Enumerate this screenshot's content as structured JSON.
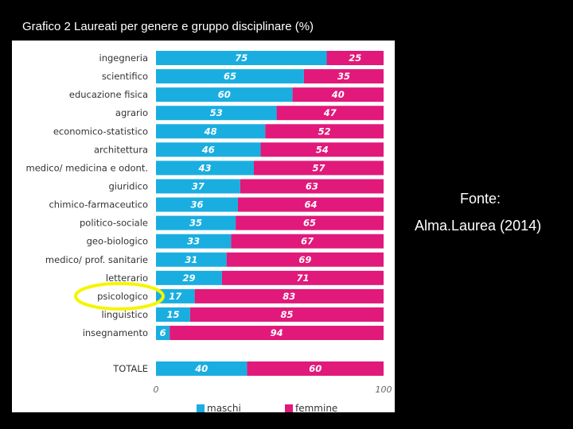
{
  "slide": {
    "title": "Grafico 2 Laureati per genere e gruppo disciplinare (%)",
    "fonte_label": "Fonte:",
    "fonte_source": "Alma.Laurea (2014)"
  },
  "colors": {
    "maschi": "#1aaee0",
    "femmine": "#e0197a",
    "highlight": "#f5f500"
  },
  "chart_data": {
    "type": "bar",
    "stacked": true,
    "orientation": "horizontal",
    "categories": [
      "ingegneria",
      "scientifico",
      "educazione fisica",
      "agrario",
      "economico-statistico",
      "architettura",
      "medico/ medicina e odont.",
      "giuridico",
      "chimico-farmaceutico",
      "politico-sociale",
      "geo-biologico",
      "medico/ prof. sanitarie",
      "letterario",
      "psicologico",
      "linguistico",
      "insegnamento",
      "TOTALE"
    ],
    "series": [
      {
        "name": "maschi",
        "values": [
          75,
          65,
          60,
          53,
          48,
          46,
          43,
          37,
          36,
          35,
          33,
          31,
          29,
          17,
          15,
          6,
          40
        ]
      },
      {
        "name": "femmine",
        "values": [
          25,
          35,
          40,
          47,
          52,
          54,
          57,
          63,
          64,
          65,
          67,
          69,
          71,
          83,
          85,
          94,
          60
        ]
      }
    ],
    "xlim": [
      0,
      100
    ],
    "x_ticks": [
      "0",
      "100"
    ],
    "legend_position": "bottom",
    "highlighted_category": "psicologico",
    "grid": false
  }
}
